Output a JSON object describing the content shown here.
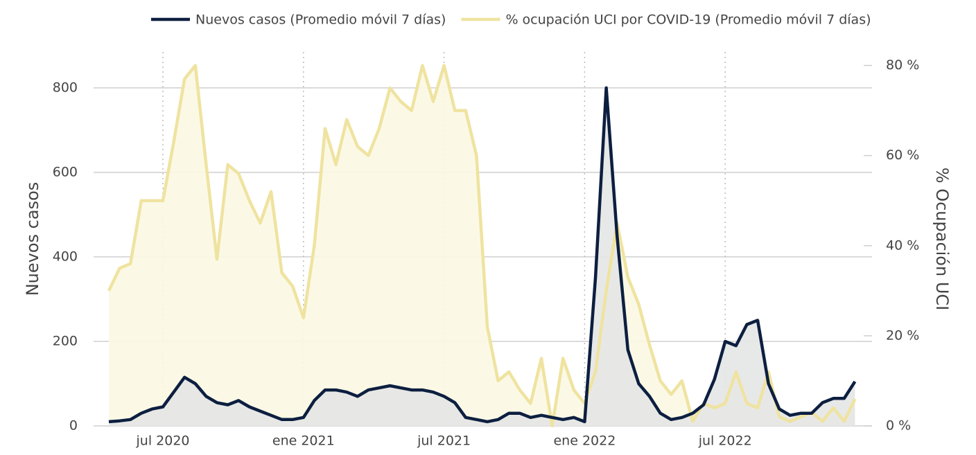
{
  "chart_data": {
    "type": "line",
    "categories": [
      null,
      null,
      null,
      null,
      null,
      "jul 2020",
      null,
      null,
      null,
      null,
      null,
      null,
      null,
      null,
      null,
      null,
      null,
      null,
      "ene 2021",
      null,
      null,
      null,
      null,
      null,
      null,
      null,
      null,
      null,
      null,
      null,
      null,
      "jul 2021",
      null,
      null,
      null,
      null,
      null,
      null,
      null,
      null,
      null,
      null,
      null,
      null,
      "ene 2022",
      null,
      null,
      null,
      null,
      null,
      null,
      null,
      null,
      null,
      null,
      null,
      null,
      "jul 2022",
      null,
      null,
      null,
      null,
      null,
      null,
      null,
      null,
      null,
      null,
      null,
      null
    ],
    "series": [
      {
        "name": "% ocupación UCI por COVID-19 (Promedio móvil 7 días)",
        "color": "#efe3a0",
        "fill": "#fbf8e3",
        "axis": "y2",
        "values": [
          30,
          35,
          36,
          50,
          50,
          50,
          63,
          77,
          80,
          58,
          37,
          58,
          56,
          50,
          45,
          52,
          34,
          31,
          24,
          40,
          66,
          58,
          68,
          62,
          60,
          66,
          75,
          72,
          70,
          80,
          72,
          80,
          70,
          70,
          60,
          22,
          10,
          12,
          8,
          5,
          15,
          0,
          15,
          8,
          5,
          12,
          30,
          45,
          33,
          27,
          18,
          10,
          7,
          10,
          1,
          5,
          4,
          5,
          12,
          5,
          4,
          12,
          2,
          1,
          2,
          3,
          1,
          4,
          1,
          6
        ]
      },
      {
        "name": "Nuevos casos (Promedio móvil 7 días)",
        "color": "#0d1f40",
        "fill": "#e4e5e6",
        "axis": "y",
        "values": [
          10,
          12,
          15,
          30,
          40,
          45,
          80,
          115,
          100,
          70,
          55,
          50,
          60,
          45,
          35,
          25,
          15,
          15,
          20,
          60,
          85,
          85,
          80,
          70,
          85,
          90,
          95,
          90,
          85,
          85,
          80,
          70,
          55,
          20,
          15,
          10,
          15,
          30,
          30,
          20,
          25,
          20,
          15,
          20,
          10,
          350,
          800,
          450,
          180,
          100,
          70,
          30,
          15,
          20,
          30,
          50,
          110,
          200,
          190,
          240,
          250,
          100,
          40,
          25,
          30,
          30,
          55,
          65,
          65,
          105
        ]
      }
    ],
    "y_label": "Nuevos casos",
    "y2_label": "% Ocupación UCI",
    "ylim": [
      0,
      885
    ],
    "yticks": [
      0,
      200,
      400,
      600,
      800
    ],
    "y2lim": [
      0,
      83
    ],
    "y2ticks": [
      {
        "value": 0,
        "label": "0 %"
      },
      {
        "value": 20,
        "label": "20 %"
      },
      {
        "value": 40,
        "label": "40 %"
      },
      {
        "value": 60,
        "label": "60 %"
      },
      {
        "value": 80,
        "label": "80 %"
      }
    ],
    "grid": true,
    "legend": "top"
  }
}
